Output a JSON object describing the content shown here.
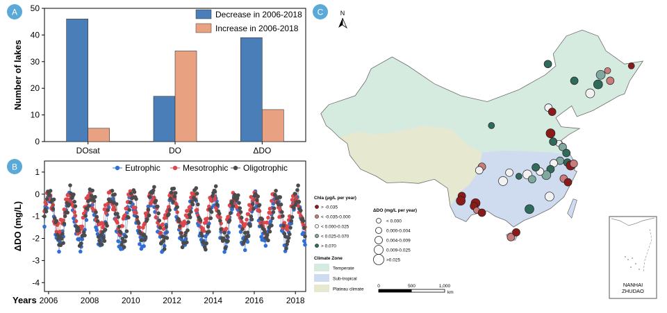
{
  "panel_labels": {
    "a": "A",
    "b": "B",
    "c": "C"
  },
  "chart_data": [
    {
      "type": "bar",
      "categories": [
        "DOsat",
        "DO",
        "ΔDO"
      ],
      "series": [
        {
          "name": "Decrease in 2006-2018",
          "values": [
            46,
            17,
            39
          ],
          "color": "#4a7eb8"
        },
        {
          "name": "Increase in 2006-2018",
          "values": [
            5,
            34,
            12
          ],
          "color": "#e8a282"
        }
      ],
      "ylabel": "Number of lakes",
      "xlabel": "",
      "ylim": [
        0,
        50
      ],
      "yticks": [
        0,
        10,
        20,
        30,
        40,
        50
      ],
      "legend": "top-right",
      "grid": false
    },
    {
      "type": "scatter",
      "mode": "lines+markers",
      "ylabel": "ΔDO (mg/L)",
      "xlabel": "Years",
      "xlim": [
        2005.8,
        2018.5
      ],
      "ylim": [
        -4.4,
        1.5
      ],
      "xticks": [
        2006,
        2008,
        2010,
        2012,
        2014,
        2016,
        2018
      ],
      "yticks": [
        -4,
        -3,
        -2,
        -1,
        0,
        1
      ],
      "legend": "top",
      "grid": false,
      "seasonal_cycles": [
        2006,
        2007,
        2008,
        2009,
        2010,
        2011,
        2012,
        2013,
        2014,
        2015,
        2016,
        2017,
        2018
      ],
      "series": [
        {
          "name": "Eutrophic",
          "color": "#2f6fd6",
          "amplitude": 1.9,
          "offset": -1.25,
          "phase": 0.02,
          "jitter": 0.35
        },
        {
          "name": "Mesotrophic",
          "color": "#e0474c",
          "amplitude": 1.3,
          "offset": -0.85,
          "phase": 0.06,
          "jitter": 0.3
        },
        {
          "name": "Oligotrophic",
          "color": "#4b4b4b",
          "amplitude": 2.0,
          "offset": -1.05,
          "phase": -0.04,
          "jitter": 0.4
        }
      ]
    },
    {
      "type": "map",
      "north_label": "N",
      "legend_chla": {
        "title": "Chla (μg/L per year)",
        "items": [
          {
            "label": "> -0.035",
            "color": "#8b1a1a"
          },
          {
            "label": "< -0.035-0.000",
            "color": "#c87c7c"
          },
          {
            "label": "< 0.000-0.025",
            "color": "#f2f2f2"
          },
          {
            "label": "< 0.025-0.070",
            "color": "#7fa89e"
          },
          {
            "label": "> 0.070",
            "color": "#2f6a5a"
          }
        ]
      },
      "legend_ddo": {
        "title": "ΔDO (mg/L per year)",
        "items": [
          "< 0.000",
          "0.000-0.004",
          "0.004-0.009",
          "0.009-0.025",
          ">0.025"
        ]
      },
      "legend_climate": {
        "title": "Climate Zone",
        "items": [
          {
            "label": "Temperate",
            "color": "#d6ebe0"
          },
          {
            "label": "Sub-tropical",
            "color": "#cfdcef"
          },
          {
            "label": "Plateau climate",
            "color": "#e6e8d0"
          }
        ]
      },
      "scale_bar": {
        "ticks": [
          "0",
          "500",
          "1,000"
        ],
        "unit": "km"
      },
      "inset_label": [
        "NANHAI",
        "ZHUDAO"
      ],
      "lakes": [
        {
          "lon": 116.5,
          "lat": 47.8,
          "chla": 4,
          "size": 2
        },
        {
          "lon": 121.5,
          "lat": 45.0,
          "chla": 4,
          "size": 2
        },
        {
          "lon": 126.5,
          "lat": 46.0,
          "chla": 3,
          "size": 3
        },
        {
          "lon": 127.8,
          "lat": 46.7,
          "chla": 1,
          "size": 1
        },
        {
          "lon": 126.0,
          "lat": 44.4,
          "chla": 4,
          "size": 3
        },
        {
          "lon": 128.3,
          "lat": 45.0,
          "chla": 1,
          "size": 2
        },
        {
          "lon": 124.5,
          "lat": 42.9,
          "chla": 2,
          "size": 3
        },
        {
          "lon": 132.3,
          "lat": 47.5,
          "chla": 0,
          "size": 1
        },
        {
          "lon": 116.6,
          "lat": 40.5,
          "chla": 2,
          "size": 2
        },
        {
          "lon": 117.3,
          "lat": 39.8,
          "chla": 0,
          "size": 2
        },
        {
          "lon": 105.8,
          "lat": 37.5,
          "chla": 4,
          "size": 1
        },
        {
          "lon": 117.0,
          "lat": 36.2,
          "chla": 0,
          "size": 3
        },
        {
          "lon": 118.6,
          "lat": 34.5,
          "chla": 2,
          "size": 1
        },
        {
          "lon": 117.5,
          "lat": 34.8,
          "chla": 4,
          "size": 2
        },
        {
          "lon": 119.3,
          "lat": 33.9,
          "chla": 3,
          "size": 2
        },
        {
          "lon": 120.0,
          "lat": 32.9,
          "chla": 4,
          "size": 2
        },
        {
          "lon": 118.8,
          "lat": 31.6,
          "chla": 3,
          "size": 2
        },
        {
          "lon": 117.6,
          "lat": 31.2,
          "chla": 2,
          "size": 2
        },
        {
          "lon": 120.2,
          "lat": 31.3,
          "chla": 4,
          "size": 2
        },
        {
          "lon": 120.8,
          "lat": 30.8,
          "chla": 0,
          "size": 3
        },
        {
          "lon": 121.4,
          "lat": 31.1,
          "chla": 1,
          "size": 2
        },
        {
          "lon": 117.0,
          "lat": 30.2,
          "chla": 4,
          "size": 2
        },
        {
          "lon": 116.2,
          "lat": 29.2,
          "chla": 3,
          "size": 3
        },
        {
          "lon": 115.0,
          "lat": 29.8,
          "chla": 2,
          "size": 2
        },
        {
          "lon": 112.6,
          "lat": 29.3,
          "chla": 2,
          "size": 3
        },
        {
          "lon": 111.0,
          "lat": 29.0,
          "chla": 4,
          "size": 1
        },
        {
          "lon": 114.2,
          "lat": 30.5,
          "chla": 4,
          "size": 2
        },
        {
          "lon": 113.5,
          "lat": 28.5,
          "chla": 3,
          "size": 2
        },
        {
          "lon": 109.2,
          "lat": 29.6,
          "chla": 2,
          "size": 2
        },
        {
          "lon": 108.0,
          "lat": 28.2,
          "chla": 2,
          "size": 3
        },
        {
          "lon": 104.0,
          "lat": 30.6,
          "chla": 1,
          "size": 2
        },
        {
          "lon": 103.5,
          "lat": 30.0,
          "chla": 2,
          "size": 2
        },
        {
          "lon": 119.5,
          "lat": 28.6,
          "chla": 1,
          "size": 2
        },
        {
          "lon": 120.3,
          "lat": 28.0,
          "chla": 0,
          "size": 2
        },
        {
          "lon": 116.8,
          "lat": 25.6,
          "chla": 2,
          "size": 3
        },
        {
          "lon": 113.0,
          "lat": 23.5,
          "chla": 4,
          "size": 3
        },
        {
          "lon": 100.2,
          "lat": 25.7,
          "chla": 0,
          "size": 2
        },
        {
          "lon": 100.0,
          "lat": 24.9,
          "chla": 0,
          "size": 3
        },
        {
          "lon": 102.8,
          "lat": 24.5,
          "chla": 0,
          "size": 3
        },
        {
          "lon": 102.5,
          "lat": 24.0,
          "chla": 0,
          "size": 2
        },
        {
          "lon": 103.0,
          "lat": 23.3,
          "chla": 1,
          "size": 1
        },
        {
          "lon": 104.0,
          "lat": 22.9,
          "chla": 0,
          "size": 2
        },
        {
          "lon": 109.5,
          "lat": 18.8,
          "chla": 1,
          "size": 2
        },
        {
          "lon": 110.5,
          "lat": 19.6,
          "chla": 0,
          "size": 2
        }
      ]
    }
  ]
}
